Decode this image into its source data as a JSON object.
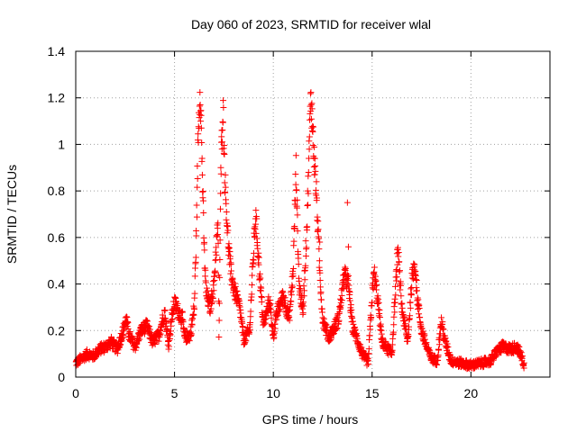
{
  "chart_data": {
    "type": "scatter",
    "title": "Day 060 of 2023, SRMTID for receiver wlal",
    "xlabel": "GPS time / hours",
    "ylabel": "SRMTID / TECUs",
    "xlim": [
      0,
      24
    ],
    "ylim": [
      0,
      1.4
    ],
    "xticks": [
      0,
      5,
      10,
      15,
      20
    ],
    "xtick_labels": [
      "0",
      "5",
      "10",
      "15",
      "20"
    ],
    "yticks": [
      0,
      0.2,
      0.4,
      0.6,
      0.8,
      1,
      1.2,
      1.4
    ],
    "ytick_labels": [
      "0",
      "0.2",
      "0.4",
      "0.6",
      "0.8",
      "1",
      "1.2",
      "1.4"
    ],
    "grid": true,
    "marker": "+",
    "series": [
      {
        "name": "wlal",
        "color": "#ff0000",
        "profile": [
          [
            0.0,
            0.06
          ],
          [
            0.3,
            0.08
          ],
          [
            0.6,
            0.1
          ],
          [
            0.9,
            0.09
          ],
          [
            1.2,
            0.12
          ],
          [
            1.5,
            0.13
          ],
          [
            1.8,
            0.15
          ],
          [
            2.1,
            0.12
          ],
          [
            2.4,
            0.2
          ],
          [
            2.55,
            0.25
          ],
          [
            2.7,
            0.18
          ],
          [
            3.0,
            0.13
          ],
          [
            3.3,
            0.2
          ],
          [
            3.6,
            0.22
          ],
          [
            3.9,
            0.15
          ],
          [
            4.2,
            0.18
          ],
          [
            4.5,
            0.28
          ],
          [
            4.7,
            0.14
          ],
          [
            4.85,
            0.25
          ],
          [
            5.0,
            0.32
          ],
          [
            5.2,
            0.28
          ],
          [
            5.4,
            0.25
          ],
          [
            5.5,
            0.17
          ],
          [
            5.8,
            0.18
          ],
          [
            6.0,
            0.3
          ],
          [
            6.1,
            0.6
          ],
          [
            6.2,
            1.05
          ],
          [
            6.3,
            1.26
          ],
          [
            6.4,
            0.9
          ],
          [
            6.5,
            0.55
          ],
          [
            6.6,
            0.36
          ],
          [
            6.8,
            0.3
          ],
          [
            7.0,
            0.4
          ],
          [
            7.1,
            0.55
          ],
          [
            7.2,
            0.65
          ],
          [
            7.25,
            0.17
          ],
          [
            7.35,
            0.9
          ],
          [
            7.45,
            1.18
          ],
          [
            7.55,
            0.85
          ],
          [
            7.7,
            0.6
          ],
          [
            7.85,
            0.45
          ],
          [
            8.0,
            0.38
          ],
          [
            8.3,
            0.3
          ],
          [
            8.5,
            0.16
          ],
          [
            8.8,
            0.2
          ],
          [
            8.95,
            0.45
          ],
          [
            9.1,
            0.7
          ],
          [
            9.3,
            0.45
          ],
          [
            9.5,
            0.22
          ],
          [
            9.8,
            0.33
          ],
          [
            10.0,
            0.18
          ],
          [
            10.2,
            0.28
          ],
          [
            10.5,
            0.35
          ],
          [
            10.8,
            0.25
          ],
          [
            11.0,
            0.45
          ],
          [
            11.15,
            0.9
          ],
          [
            11.3,
            0.4
          ],
          [
            11.5,
            0.28
          ],
          [
            11.7,
            0.65
          ],
          [
            11.9,
            1.22
          ],
          [
            12.0,
            1.05
          ],
          [
            12.2,
            0.75
          ],
          [
            12.35,
            0.45
          ],
          [
            12.5,
            0.25
          ],
          [
            12.8,
            0.17
          ],
          [
            13.0,
            0.2
          ],
          [
            13.3,
            0.25
          ],
          [
            13.6,
            0.44
          ],
          [
            13.8,
            0.4
          ],
          [
            14.0,
            0.22
          ],
          [
            14.3,
            0.15
          ],
          [
            14.5,
            0.1
          ],
          [
            14.8,
            0.06
          ],
          [
            15.0,
            0.35
          ],
          [
            15.1,
            0.45
          ],
          [
            15.3,
            0.32
          ],
          [
            15.5,
            0.15
          ],
          [
            15.8,
            0.12
          ],
          [
            16.0,
            0.1
          ],
          [
            16.2,
            0.4
          ],
          [
            16.3,
            0.55
          ],
          [
            16.5,
            0.3
          ],
          [
            16.8,
            0.15
          ],
          [
            17.0,
            0.4
          ],
          [
            17.15,
            0.5
          ],
          [
            17.3,
            0.33
          ],
          [
            17.5,
            0.2
          ],
          [
            17.8,
            0.12
          ],
          [
            18.0,
            0.08
          ],
          [
            18.3,
            0.07
          ],
          [
            18.5,
            0.24
          ],
          [
            18.7,
            0.15
          ],
          [
            19.0,
            0.07
          ],
          [
            19.5,
            0.06
          ],
          [
            20.0,
            0.05
          ],
          [
            20.5,
            0.06
          ],
          [
            21.0,
            0.07
          ],
          [
            21.3,
            0.11
          ],
          [
            21.6,
            0.13
          ],
          [
            22.0,
            0.12
          ],
          [
            22.3,
            0.13
          ],
          [
            22.5,
            0.1
          ],
          [
            22.7,
            0.05
          ]
        ],
        "features": [
          {
            "x": 13.75,
            "y": 0.75
          },
          {
            "x": 13.8,
            "y": 0.56
          },
          {
            "x": 12.35,
            "y": 0.58
          }
        ]
      }
    ]
  }
}
